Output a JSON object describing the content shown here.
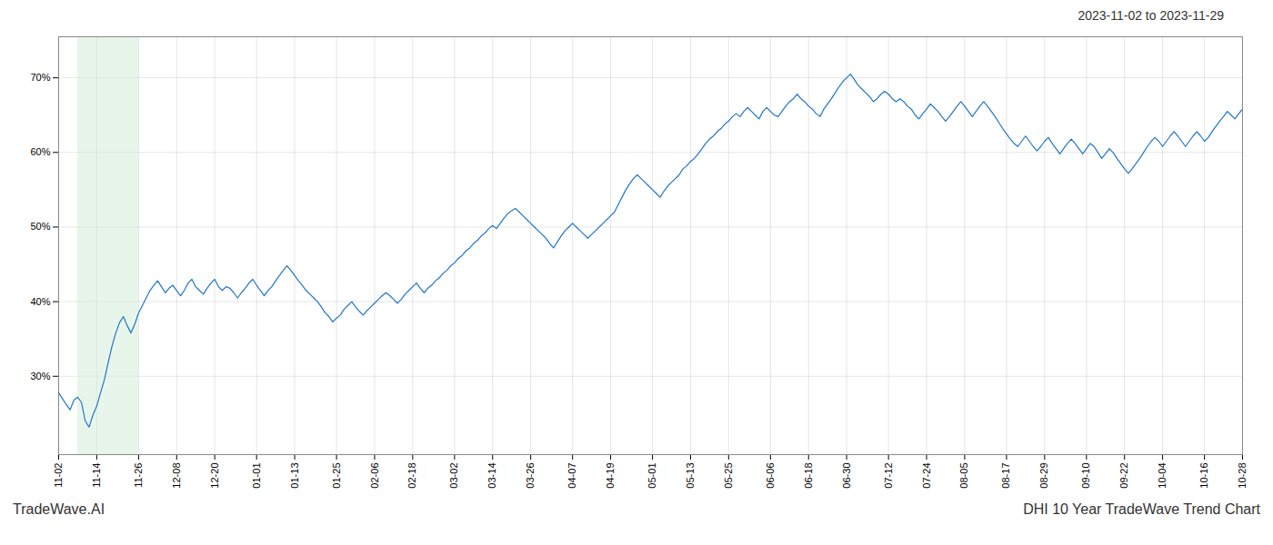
{
  "chart_data": {
    "type": "line",
    "title": "2023-11-02 to 2023-11-29",
    "annotations": [
      "TradeWave.AI",
      "DHI 10 Year TradeWave Trend Chart"
    ],
    "color": "#2176c8",
    "grid": true,
    "ylim": [
      0.195,
      0.755
    ],
    "yticks": [
      {
        "value": 0.3,
        "label": "30%"
      },
      {
        "value": 0.4,
        "label": "40%"
      },
      {
        "value": 0.5,
        "label": "50%"
      },
      {
        "value": 0.6,
        "label": "60%"
      },
      {
        "value": 0.7,
        "label": "70%"
      }
    ],
    "shade": {
      "start": 5,
      "end": 21,
      "color": "#d6edd8"
    },
    "categories": [
      "11-02",
      null,
      null,
      null,
      null,
      null,
      null,
      null,
      null,
      null,
      "11-14",
      null,
      null,
      null,
      null,
      null,
      null,
      null,
      null,
      null,
      null,
      "11-26",
      null,
      null,
      null,
      null,
      null,
      null,
      null,
      null,
      null,
      "12-08",
      null,
      null,
      null,
      null,
      null,
      null,
      null,
      null,
      null,
      "12-20",
      null,
      null,
      null,
      null,
      null,
      null,
      null,
      null,
      null,
      null,
      "01-01",
      null,
      null,
      null,
      null,
      null,
      null,
      null,
      null,
      null,
      "01-13",
      null,
      null,
      null,
      null,
      null,
      null,
      null,
      null,
      null,
      null,
      "01-25",
      null,
      null,
      null,
      null,
      null,
      null,
      null,
      null,
      null,
      "02-06",
      null,
      null,
      null,
      null,
      null,
      null,
      null,
      null,
      null,
      "02-18",
      null,
      null,
      null,
      null,
      null,
      null,
      null,
      null,
      null,
      null,
      "03-02",
      null,
      null,
      null,
      null,
      null,
      null,
      null,
      null,
      null,
      "03-14",
      null,
      null,
      null,
      null,
      null,
      null,
      null,
      null,
      null,
      "03-26",
      null,
      null,
      null,
      null,
      null,
      null,
      null,
      null,
      null,
      null,
      "04-07",
      null,
      null,
      null,
      null,
      null,
      null,
      null,
      null,
      null,
      "04-19",
      null,
      null,
      null,
      null,
      null,
      null,
      null,
      null,
      null,
      null,
      "05-01",
      null,
      null,
      null,
      null,
      null,
      null,
      null,
      null,
      null,
      "05-13",
      null,
      null,
      null,
      null,
      null,
      null,
      null,
      null,
      null,
      "05-25",
      null,
      null,
      null,
      null,
      null,
      null,
      null,
      null,
      null,
      null,
      "06-06",
      null,
      null,
      null,
      null,
      null,
      null,
      null,
      null,
      null,
      "06-18",
      null,
      null,
      null,
      null,
      null,
      null,
      null,
      null,
      null,
      "06-30",
      null,
      null,
      null,
      null,
      null,
      null,
      null,
      null,
      null,
      null,
      "07-12",
      null,
      null,
      null,
      null,
      null,
      null,
      null,
      null,
      null,
      "07-24",
      null,
      null,
      null,
      null,
      null,
      null,
      null,
      null,
      null,
      "08-05",
      null,
      null,
      null,
      null,
      null,
      null,
      null,
      null,
      null,
      null,
      "08-17",
      null,
      null,
      null,
      null,
      null,
      null,
      null,
      null,
      null,
      "08-29",
      null,
      null,
      null,
      null,
      null,
      null,
      null,
      null,
      null,
      null,
      "09-10",
      null,
      null,
      null,
      null,
      null,
      null,
      null,
      null,
      null,
      "09-22",
      null,
      null,
      null,
      null,
      null,
      null,
      null,
      null,
      null,
      "10-04",
      null,
      null,
      null,
      null,
      null,
      null,
      null,
      null,
      null,
      null,
      "10-16",
      null,
      null,
      null,
      null,
      null,
      null,
      null,
      null,
      null,
      "10-28"
    ],
    "values": [
      0.278,
      0.27,
      0.262,
      0.255,
      0.268,
      0.272,
      0.265,
      0.24,
      0.232,
      0.248,
      0.26,
      0.278,
      0.295,
      0.318,
      0.34,
      0.358,
      0.372,
      0.38,
      0.368,
      0.358,
      0.37,
      0.385,
      0.395,
      0.405,
      0.415,
      0.422,
      0.428,
      0.42,
      0.412,
      0.418,
      0.422,
      0.415,
      0.408,
      0.415,
      0.425,
      0.43,
      0.42,
      0.415,
      0.41,
      0.418,
      0.425,
      0.43,
      0.42,
      0.415,
      0.42,
      0.418,
      0.412,
      0.405,
      0.412,
      0.418,
      0.425,
      0.43,
      0.422,
      0.415,
      0.408,
      0.415,
      0.42,
      0.428,
      0.435,
      0.442,
      0.448,
      0.442,
      0.435,
      0.428,
      0.422,
      0.415,
      0.41,
      0.405,
      0.4,
      0.393,
      0.385,
      0.38,
      0.373,
      0.378,
      0.382,
      0.39,
      0.395,
      0.4,
      0.393,
      0.387,
      0.382,
      0.388,
      0.393,
      0.398,
      0.403,
      0.408,
      0.412,
      0.408,
      0.403,
      0.398,
      0.403,
      0.41,
      0.415,
      0.42,
      0.425,
      0.418,
      0.412,
      0.418,
      0.422,
      0.428,
      0.432,
      0.438,
      0.442,
      0.448,
      0.452,
      0.458,
      0.462,
      0.468,
      0.472,
      0.478,
      0.482,
      0.488,
      0.492,
      0.498,
      0.502,
      0.498,
      0.505,
      0.512,
      0.518,
      0.522,
      0.525,
      0.52,
      0.515,
      0.51,
      0.505,
      0.5,
      0.495,
      0.49,
      0.485,
      0.478,
      0.472,
      0.48,
      0.488,
      0.495,
      0.5,
      0.505,
      0.5,
      0.495,
      0.49,
      0.485,
      0.49,
      0.495,
      0.5,
      0.505,
      0.51,
      0.515,
      0.52,
      0.53,
      0.54,
      0.55,
      0.558,
      0.565,
      0.57,
      0.565,
      0.56,
      0.555,
      0.55,
      0.545,
      0.54,
      0.548,
      0.555,
      0.56,
      0.565,
      0.57,
      0.578,
      0.582,
      0.588,
      0.592,
      0.598,
      0.605,
      0.612,
      0.618,
      0.622,
      0.628,
      0.632,
      0.638,
      0.642,
      0.648,
      0.652,
      0.648,
      0.655,
      0.66,
      0.655,
      0.65,
      0.645,
      0.655,
      0.66,
      0.655,
      0.65,
      0.648,
      0.655,
      0.662,
      0.668,
      0.672,
      0.678,
      0.672,
      0.668,
      0.662,
      0.658,
      0.652,
      0.648,
      0.658,
      0.665,
      0.672,
      0.68,
      0.688,
      0.695,
      0.7,
      0.705,
      0.698,
      0.69,
      0.685,
      0.68,
      0.675,
      0.668,
      0.672,
      0.678,
      0.682,
      0.678,
      0.672,
      0.668,
      0.672,
      0.668,
      0.662,
      0.658,
      0.65,
      0.645,
      0.652,
      0.658,
      0.665,
      0.66,
      0.655,
      0.648,
      0.642,
      0.648,
      0.655,
      0.662,
      0.668,
      0.662,
      0.655,
      0.648,
      0.655,
      0.662,
      0.668,
      0.662,
      0.655,
      0.648,
      0.64,
      0.632,
      0.625,
      0.618,
      0.612,
      0.608,
      0.615,
      0.622,
      0.615,
      0.608,
      0.602,
      0.608,
      0.615,
      0.62,
      0.612,
      0.605,
      0.598,
      0.605,
      0.612,
      0.618,
      0.612,
      0.605,
      0.598,
      0.605,
      0.612,
      0.608,
      0.6,
      0.592,
      0.598,
      0.605,
      0.6,
      0.592,
      0.585,
      0.578,
      0.572,
      0.578,
      0.585,
      0.592,
      0.6,
      0.608,
      0.615,
      0.62,
      0.615,
      0.608,
      0.615,
      0.622,
      0.628,
      0.622,
      0.615,
      0.608,
      0.615,
      0.622,
      0.628,
      0.622,
      0.615,
      0.62,
      0.628,
      0.635,
      0.642,
      0.648,
      0.655,
      0.65,
      0.645,
      0.652,
      0.658
    ]
  }
}
